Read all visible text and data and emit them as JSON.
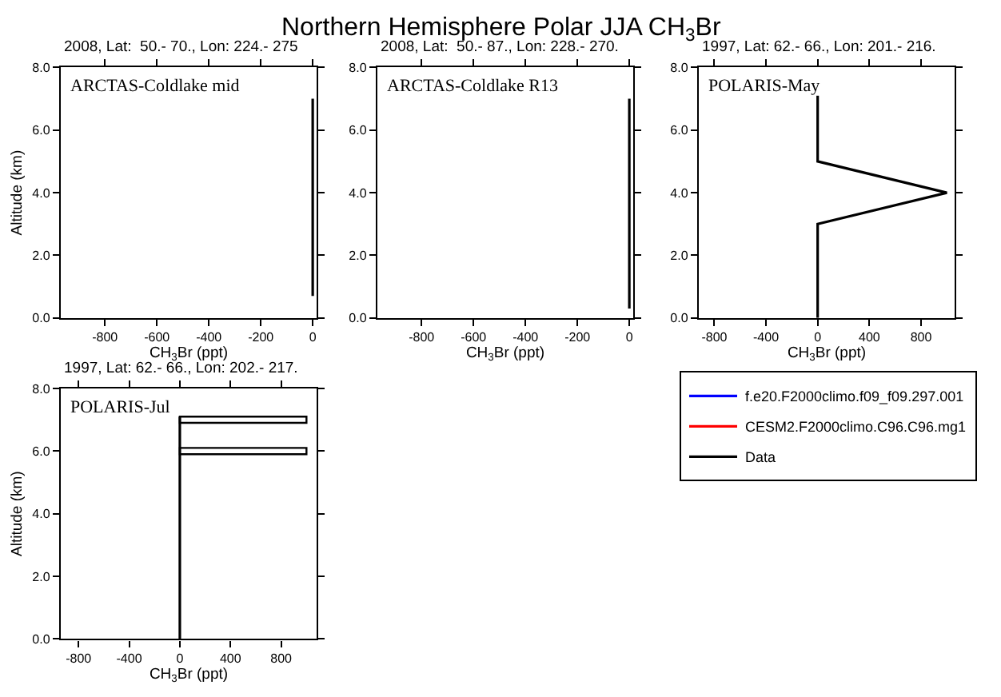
{
  "chart_data": [
    {
      "type": "line",
      "orientation": "horizontal",
      "annotations": [
        "Northern Hemisphere Polar JJA CH$_{3}$Br"
      ],
      "title": "ARCTAS-Coldlake mid",
      "subtitle": "2008, Lat:  50.- 70., Lon: 224.- 275",
      "xlabel": "CH$_{3}$Br (ppt)",
      "ylabel": "Altitude (km)",
      "xlim": [
        -970,
        15
      ],
      "xticks": [
        -800,
        -600,
        -400,
        -200,
        0
      ],
      "ylim": [
        0,
        8
      ],
      "yticks": [
        {
          "value": 0,
          "label": "0.0"
        },
        {
          "value": 2,
          "label": "2.0"
        },
        {
          "value": 4,
          "label": "4.0"
        },
        {
          "value": 6,
          "label": "6.0"
        },
        {
          "value": 8,
          "label": "8.0"
        }
      ],
      "series": [
        {
          "color": "#000000",
          "x": [
            0.7,
            7.0
          ],
          "values": [
            0,
            0
          ]
        }
      ]
    },
    {
      "type": "line",
      "orientation": "horizontal",
      "title": "ARCTAS-Coldlake R13",
      "subtitle": "2008, Lat:  50.- 87., Lon: 228.- 270.",
      "xlabel": "CH$_{3}$Br (ppt)",
      "xlim": [
        -970,
        15
      ],
      "xticks": [
        -800,
        -600,
        -400,
        -200,
        0
      ],
      "ylim": [
        0,
        8
      ],
      "yticks": [
        {
          "value": 0,
          "label": "0.0"
        },
        {
          "value": 2,
          "label": "2.0"
        },
        {
          "value": 4,
          "label": "4.0"
        },
        {
          "value": 6,
          "label": "6.0"
        },
        {
          "value": 8,
          "label": "8.0"
        }
      ],
      "series": [
        {
          "color": "#000000",
          "x": [
            0.3,
            7.0
          ],
          "values": [
            0,
            0
          ]
        }
      ]
    },
    {
      "type": "line",
      "orientation": "horizontal",
      "title": "POLARIS-May",
      "subtitle": "1997, Lat: 62.- 66., Lon: 201.- 216.",
      "xlabel": "CH$_{3}$Br (ppt)",
      "xlim": [
        -920,
        1060
      ],
      "xticks": [
        -800,
        -400,
        0,
        400,
        800
      ],
      "ylim": [
        0,
        8
      ],
      "yticks": [
        {
          "value": 0,
          "label": "0.0"
        },
        {
          "value": 2,
          "label": "2.0"
        },
        {
          "value": 4,
          "label": "4.0"
        },
        {
          "value": 6,
          "label": "6.0"
        },
        {
          "value": 8,
          "label": "8.0"
        }
      ],
      "legend": "bottom",
      "series": [
        {
          "name": "f.e20.F2000climo.f09_f09.297.001",
          "color": "#0000ff",
          "x": [
            null
          ],
          "values": [
            null
          ]
        },
        {
          "name": "CESM2.F2000climo.C96.C96.mg1",
          "color": "#ff0000",
          "x": [
            null
          ],
          "values": [
            null
          ]
        },
        {
          "name": "Data",
          "color": "#000000",
          "x": [
            0,
            3,
            4,
            5,
            7.1
          ],
          "values": [
            0,
            0,
            1000,
            0,
            0
          ]
        }
      ]
    },
    {
      "type": "line",
      "orientation": "horizontal",
      "title": "POLARIS-Jul",
      "subtitle": "1997, Lat: 62.- 66., Lon: 202.- 217.",
      "xlabel": "CH$_{3}$Br (ppt)",
      "ylabel": "Altitude (km)",
      "xlim": [
        -940,
        1080
      ],
      "xticks": [
        -800,
        -400,
        0,
        400,
        800
      ],
      "ylim": [
        0,
        8
      ],
      "yticks": [
        {
          "value": 0,
          "label": "0.0"
        },
        {
          "value": 2,
          "label": "2.0"
        },
        {
          "value": 4,
          "label": "4.0"
        },
        {
          "value": 6,
          "label": "6.0"
        },
        {
          "value": 8,
          "label": "8.0"
        }
      ],
      "series": [
        {
          "color": "#000000",
          "x": [
            0,
            7.1
          ],
          "values": [
            0,
            0
          ]
        },
        {
          "type": "bar",
          "color": "#000000",
          "x": [
            6,
            7
          ],
          "values": [
            1000,
            1000
          ]
        }
      ]
    }
  ]
}
